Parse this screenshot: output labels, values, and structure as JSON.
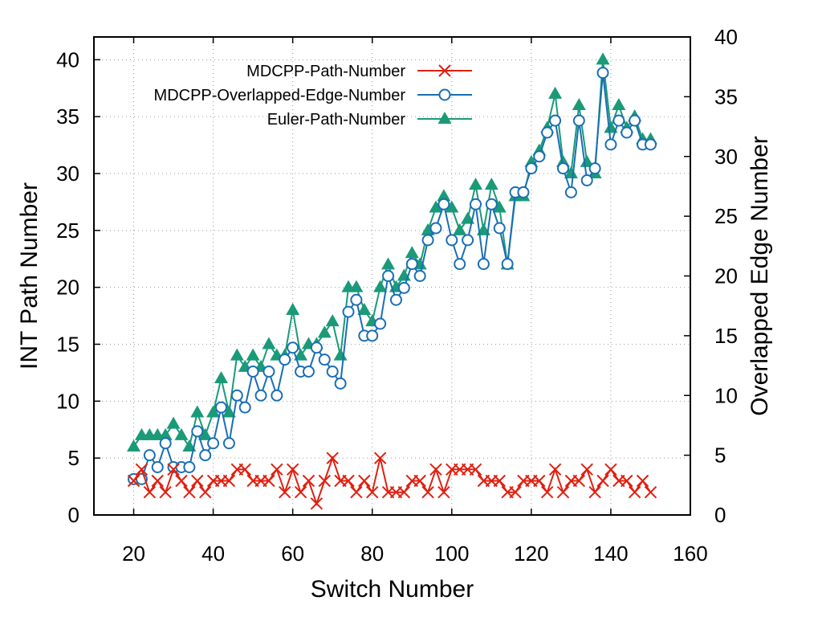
{
  "chart_data": {
    "type": "line",
    "xlabel": "Switch Number",
    "ylabel": "INT Path Number",
    "y2label": "Overlapped Edge Number",
    "xlim": [
      10,
      160
    ],
    "ylim": [
      0,
      42
    ],
    "y2lim": [
      0,
      40
    ],
    "xticks": [
      20,
      40,
      60,
      80,
      100,
      120,
      140,
      160
    ],
    "yticks": [
      0,
      5,
      10,
      15,
      20,
      25,
      30,
      35,
      40
    ],
    "y2ticks": [
      0,
      5,
      10,
      15,
      20,
      25,
      30,
      35,
      40
    ],
    "grid": true,
    "legend_position": "top-left",
    "series": [
      {
        "name": "MDCPP-Path-Number",
        "axis": "left",
        "color": "#e02010",
        "marker": "x",
        "x": [
          20,
          22,
          24,
          26,
          28,
          30,
          32,
          34,
          36,
          38,
          40,
          42,
          44,
          46,
          48,
          50,
          52,
          54,
          56,
          58,
          60,
          62,
          64,
          66,
          68,
          70,
          72,
          74,
          76,
          78,
          80,
          82,
          84,
          86,
          88,
          90,
          92,
          94,
          96,
          98,
          100,
          102,
          104,
          106,
          108,
          110,
          112,
          114,
          116,
          118,
          120,
          122,
          124,
          126,
          128,
          130,
          132,
          134,
          136,
          138,
          140,
          142,
          144,
          146,
          148,
          150
        ],
        "y": [
          3,
          4,
          2,
          3,
          2,
          4,
          3,
          2,
          3,
          2,
          3,
          3,
          3,
          4,
          4,
          3,
          3,
          3,
          4,
          2,
          4,
          2,
          3,
          1,
          3,
          5,
          3,
          3,
          2,
          3,
          2,
          5,
          2,
          2,
          2,
          3,
          3,
          2,
          4,
          2,
          4,
          4,
          4,
          4,
          3,
          3,
          3,
          2,
          2,
          3,
          3,
          3,
          2,
          4,
          2,
          3,
          3,
          4,
          2,
          3,
          4,
          3,
          3,
          2,
          3,
          2
        ]
      },
      {
        "name": "MDCPP-Overlapped-Edge-Number",
        "axis": "right",
        "color": "#1a6eb4",
        "marker": "circle",
        "x": [
          20,
          22,
          24,
          26,
          28,
          30,
          32,
          34,
          36,
          38,
          40,
          42,
          44,
          46,
          48,
          50,
          52,
          54,
          56,
          58,
          60,
          62,
          64,
          66,
          68,
          70,
          72,
          74,
          76,
          78,
          80,
          82,
          84,
          86,
          88,
          90,
          92,
          94,
          96,
          98,
          100,
          102,
          104,
          106,
          108,
          110,
          112,
          114,
          116,
          118,
          120,
          122,
          124,
          126,
          128,
          130,
          132,
          134,
          136,
          138,
          140,
          142,
          144,
          146,
          148,
          150
        ],
        "y": [
          3,
          3,
          5,
          4,
          6,
          4,
          4,
          4,
          7,
          5,
          6,
          9,
          6,
          10,
          9,
          12,
          10,
          12,
          10,
          13,
          14,
          12,
          12,
          14,
          13,
          12,
          11,
          17,
          18,
          15,
          15,
          16,
          20,
          18,
          19,
          21,
          20,
          23,
          24,
          26,
          23,
          21,
          23,
          26,
          21,
          26,
          24,
          21,
          27,
          27,
          29,
          30,
          32,
          33,
          29,
          27,
          33,
          28,
          29,
          37,
          31,
          33,
          32,
          33,
          31,
          31
        ]
      },
      {
        "name": "Euler-Path-Number",
        "axis": "left",
        "color": "#1a9a78",
        "marker": "triangle",
        "x": [
          20,
          22,
          24,
          26,
          28,
          30,
          32,
          34,
          36,
          38,
          40,
          42,
          44,
          46,
          48,
          50,
          52,
          54,
          56,
          58,
          60,
          62,
          64,
          66,
          68,
          70,
          72,
          74,
          76,
          78,
          80,
          82,
          84,
          86,
          88,
          90,
          92,
          94,
          96,
          98,
          100,
          102,
          104,
          106,
          108,
          110,
          112,
          114,
          116,
          118,
          120,
          122,
          124,
          126,
          128,
          130,
          132,
          134,
          136,
          138,
          140,
          142,
          144,
          146,
          148,
          150
        ],
        "y": [
          6,
          7,
          7,
          7,
          7,
          8,
          7,
          6,
          9,
          7,
          9,
          12,
          9,
          14,
          13,
          14,
          13,
          15,
          14,
          14,
          18,
          14,
          15,
          15,
          16,
          17,
          14,
          20,
          20,
          18,
          17,
          20,
          22,
          20,
          21,
          23,
          22,
          25,
          27,
          28,
          27,
          25,
          26,
          29,
          25,
          29,
          27,
          22,
          28,
          28,
          31,
          32,
          34,
          37,
          31,
          30,
          36,
          31,
          30,
          40,
          34,
          36,
          34,
          35,
          33,
          33
        ]
      }
    ]
  }
}
